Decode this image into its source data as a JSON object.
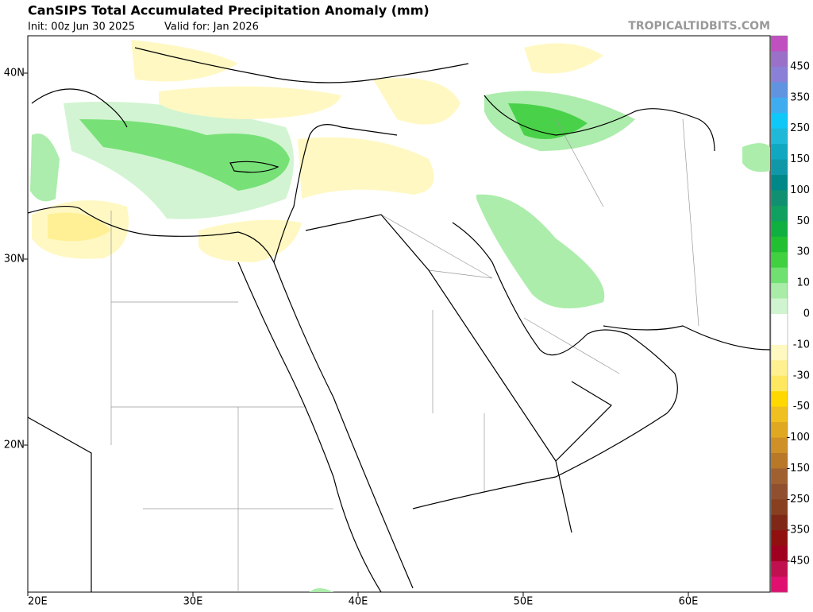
{
  "header": {
    "title": "CanSIPS Total Accumulated Precipitation Anomaly (mm)",
    "init": "Init: 00z Jun 30 2025",
    "valid": "Valid for: Jan 2026",
    "source": "TROPICALTIDBITS.COM"
  },
  "axes": {
    "lon_labels": [
      "20E",
      "30E",
      "40E",
      "50E",
      "60E"
    ],
    "lat_labels": [
      "40N",
      "30N",
      "20N"
    ]
  },
  "colorbar": {
    "labels": [
      450,
      350,
      250,
      150,
      100,
      50,
      30,
      10,
      0,
      -10,
      -30,
      -50,
      -100,
      -150,
      -250,
      -350,
      -450
    ],
    "colors": [
      "#c050c0",
      "#9a70c8",
      "#8a80d8",
      "#6094e0",
      "#40acf0",
      "#10c8f8",
      "#20b8d8",
      "#10a8c0",
      "#1098a8",
      "#008888",
      "#109070",
      "#10a060",
      "#10b040",
      "#20c030",
      "#40d040",
      "#70e070",
      "#a8eca8",
      "#d0f4d0",
      "#ffffff",
      "#ffffff",
      "#fff8c0",
      "#fff090",
      "#ffe860",
      "#ffd800",
      "#f0c020",
      "#e0a820",
      "#d09028",
      "#b87828",
      "#a06030",
      "#905030",
      "#884020",
      "#802818",
      "#901010",
      "#a00020",
      "#c01050",
      "#e01070"
    ]
  }
}
